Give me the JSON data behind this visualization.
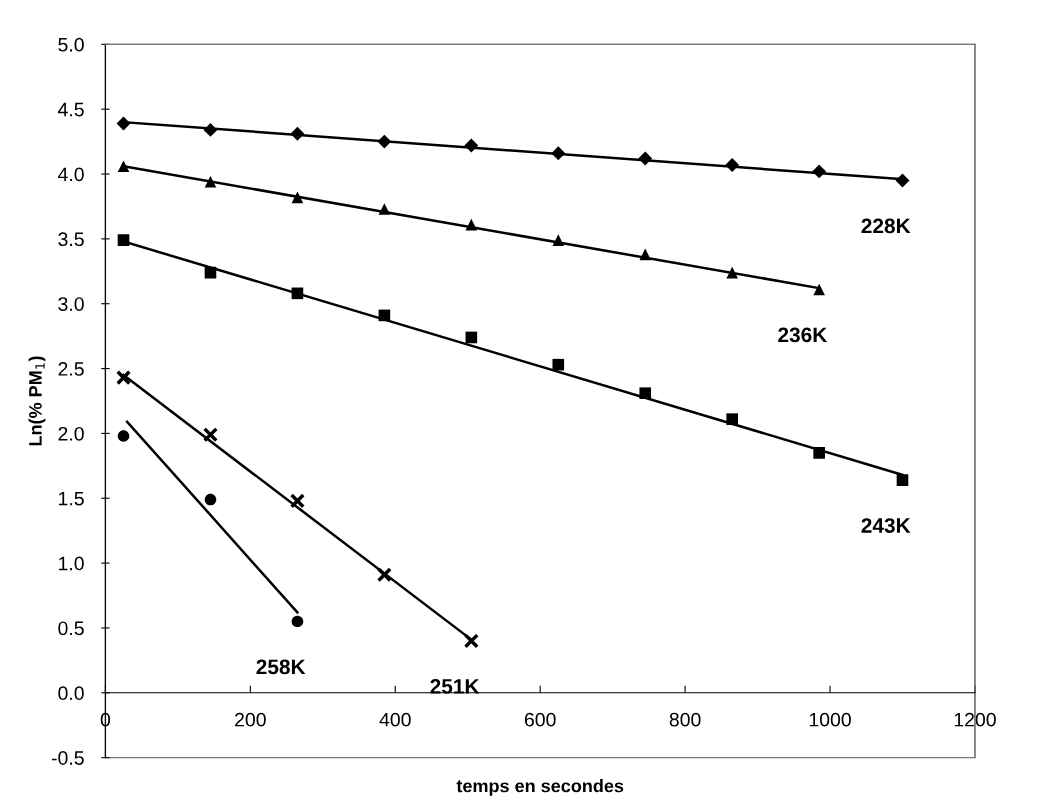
{
  "chart_data": {
    "type": "scatter",
    "xlabel": "temps en secondes",
    "ylabel": "Ln(% PM$_{1}$)",
    "xlim": [
      0,
      1200
    ],
    "xticks": [
      0,
      200,
      400,
      600,
      800,
      1000,
      1200
    ],
    "ylim": [
      -0.5,
      5.0
    ],
    "yticks": [
      {
        "value": -0.5,
        "label": "-0.5"
      },
      {
        "value": 0,
        "label": "0.0"
      },
      {
        "value": 0.5,
        "label": "0.5"
      },
      {
        "value": 1,
        "label": "1.0"
      },
      {
        "value": 1.5,
        "label": "1.5"
      },
      {
        "value": 2,
        "label": "2.0"
      },
      {
        "value": 2.5,
        "label": "2.5"
      },
      {
        "value": 3,
        "label": "3.0"
      },
      {
        "value": 3.5,
        "label": "3.5"
      },
      {
        "value": 4,
        "label": "4.0"
      },
      {
        "value": 4.5,
        "label": "4.5"
      },
      {
        "value": 5,
        "label": "5.0"
      }
    ],
    "grid": false,
    "legend": false,
    "series": [
      {
        "name": "228K",
        "marker": "diamond",
        "color": "#000000",
        "x": [
          25,
          145,
          265,
          385,
          505,
          625,
          745,
          865,
          985,
          1100
        ],
        "values": [
          4.39,
          4.34,
          4.31,
          4.25,
          4.22,
          4.16,
          4.12,
          4.07,
          4.02,
          3.95
        ]
      },
      {
        "name": "236K",
        "marker": "triangle",
        "color": "#000000",
        "x": [
          25,
          145,
          265,
          385,
          505,
          625,
          745,
          865,
          985
        ],
        "values": [
          4.06,
          3.94,
          3.82,
          3.73,
          3.61,
          3.49,
          3.38,
          3.24,
          3.11
        ]
      },
      {
        "name": "243K",
        "marker": "square",
        "color": "#000000",
        "x": [
          25,
          145,
          265,
          385,
          505,
          625,
          745,
          865,
          985,
          1100
        ],
        "values": [
          3.49,
          3.24,
          3.08,
          2.91,
          2.74,
          2.53,
          2.31,
          2.11,
          1.85,
          1.64
        ]
      },
      {
        "name": "251K",
        "marker": "cross",
        "color": "#000000",
        "x": [
          25,
          145,
          265,
          385,
          505
        ],
        "values": [
          2.43,
          1.99,
          1.48,
          0.91,
          0.4
        ]
      },
      {
        "name": "258K",
        "marker": "circle",
        "color": "#000000",
        "x": [
          25,
          145,
          265
        ],
        "values": [
          1.98,
          1.49,
          0.55
        ]
      },
      {
        "type": "line",
        "color": "#000000",
        "x": [
          25,
          1100
        ],
        "values": [
          4.4,
          3.96
        ]
      },
      {
        "type": "line",
        "color": "#000000",
        "x": [
          25,
          985
        ],
        "values": [
          4.06,
          3.12
        ]
      },
      {
        "type": "line",
        "color": "#000000",
        "x": [
          25,
          1100
        ],
        "values": [
          3.48,
          1.68
        ]
      },
      {
        "type": "line",
        "color": "#000000",
        "x": [
          25,
          505
        ],
        "values": [
          2.45,
          0.41
        ]
      },
      {
        "type": "line",
        "color": "#000000",
        "x": [
          30,
          265
        ],
        "values": [
          2.09,
          0.62
        ]
      }
    ]
  }
}
